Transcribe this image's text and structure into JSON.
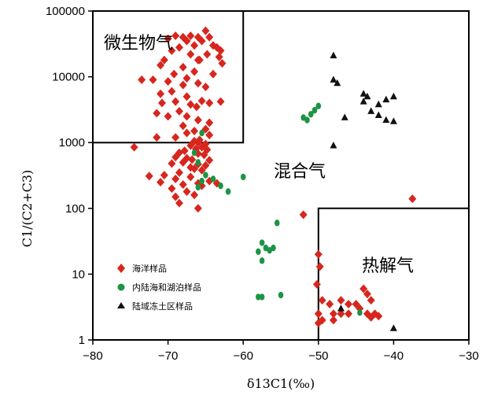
{
  "chart_data": {
    "type": "scatter",
    "title": "",
    "xlabel": "δ13C1(‰)",
    "ylabel": "C1/(C2+C3)",
    "xlim": [
      -80,
      -30
    ],
    "ylim": [
      1,
      100000
    ],
    "yscale": "log",
    "x_ticks": [
      -80,
      -70,
      -60,
      -50,
      -40,
      -30
    ],
    "x_tick_labels": [
      "−80",
      "−70",
      "−60",
      "−50",
      "−40",
      "−30"
    ],
    "y_ticks": [
      1,
      10,
      100,
      1000,
      10000,
      100000
    ],
    "y_tick_labels": [
      "1",
      "10",
      "100",
      "1000",
      "10000",
      "100000"
    ],
    "grid": false,
    "legend": {
      "position": "bottom-left",
      "entries": [
        "海洋样品",
        "内陆海和湖泊样品",
        "陆域冻土区样品"
      ]
    },
    "regions": [
      {
        "name": "微生物气",
        "x_range": [
          -80,
          -60
        ],
        "y_range": [
          1000,
          100000
        ]
      },
      {
        "name": "混合气",
        "x_range": [
          -80,
          -30
        ],
        "y_range": [
          1,
          100000
        ]
      },
      {
        "name": "热解气",
        "x_range": [
          -50,
          -30
        ],
        "y_range": [
          1,
          100
        ]
      }
    ],
    "series": [
      {
        "name": "海洋样品",
        "marker": "diamond",
        "color": "#d7261e",
        "points": [
          [
            -65,
            50000
          ],
          [
            -64.5,
            40000
          ],
          [
            -65.5,
            35000
          ],
          [
            -64,
            30000
          ],
          [
            -63.5,
            28000
          ],
          [
            -63,
            25000
          ],
          [
            -64.8,
            22000
          ],
          [
            -63.2,
            20000
          ],
          [
            -65.8,
            18000
          ],
          [
            -62.8,
            16000
          ],
          [
            -69,
            42000
          ],
          [
            -68,
            40000
          ],
          [
            -67,
            42000
          ],
          [
            -66,
            40000
          ],
          [
            -70,
            38000
          ],
          [
            -67.5,
            35000
          ],
          [
            -66.5,
            30000
          ],
          [
            -68.5,
            28000
          ],
          [
            -69.5,
            25000
          ],
          [
            -67,
            22000
          ],
          [
            -66,
            18000
          ],
          [
            -70.5,
            18000
          ],
          [
            -71,
            15000
          ],
          [
            -68,
            14000
          ],
          [
            -66.5,
            12000
          ],
          [
            -69.2,
            11000
          ],
          [
            -64,
            11000
          ],
          [
            -67.5,
            9500
          ],
          [
            -72,
            9000
          ],
          [
            -70,
            8500
          ],
          [
            -66,
            8000
          ],
          [
            -68,
            7500
          ],
          [
            -65,
            7000
          ],
          [
            -69.5,
            6000
          ],
          [
            -71,
            5500
          ],
          [
            -67.5,
            5000
          ],
          [
            -73.5,
            9000
          ],
          [
            -69,
            4200
          ],
          [
            -65.5,
            4300
          ],
          [
            -64.5,
            4000
          ],
          [
            -63,
            4200
          ],
          [
            -70.8,
            4000
          ],
          [
            -67,
            3800
          ],
          [
            -66.2,
            3500
          ],
          [
            -68.5,
            3000
          ],
          [
            -71.5,
            2800
          ],
          [
            -67.5,
            2500
          ],
          [
            -70,
            2500
          ],
          [
            -66,
            2200
          ],
          [
            -64.5,
            2000
          ],
          [
            -68,
            1800
          ],
          [
            -65,
            1600
          ],
          [
            -66.5,
            1500
          ],
          [
            -67.5,
            1400
          ],
          [
            -69,
            1200
          ],
          [
            -71.5,
            1200
          ],
          [
            -64.5,
            1300
          ],
          [
            -65.8,
            1100
          ],
          [
            -66.5,
            1050
          ],
          [
            -66,
            1000
          ],
          [
            -65,
            950
          ],
          [
            -67,
            900
          ],
          [
            -65.5,
            850
          ],
          [
            -66.3,
            800
          ],
          [
            -64.8,
            780
          ],
          [
            -67.8,
            750
          ],
          [
            -68.5,
            700
          ],
          [
            -66,
            680
          ],
          [
            -65.2,
            650
          ],
          [
            -69,
            600
          ],
          [
            -67.5,
            580
          ],
          [
            -66.8,
            550
          ],
          [
            -64.5,
            540
          ],
          [
            -68,
            500
          ],
          [
            -69.5,
            480
          ],
          [
            -66,
            470
          ],
          [
            -65,
            450
          ],
          [
            -67,
            420
          ],
          [
            -66.5,
            400
          ],
          [
            -65.5,
            380
          ],
          [
            -68.5,
            350
          ],
          [
            -70.5,
            320
          ],
          [
            -72.5,
            310
          ],
          [
            -67,
            300
          ],
          [
            -69,
            280
          ],
          [
            -64.5,
            260
          ],
          [
            -71,
            250
          ],
          [
            -66,
            240
          ],
          [
            -68,
            230
          ],
          [
            -65.5,
            220
          ],
          [
            -63.5,
            240
          ],
          [
            -69.5,
            200
          ],
          [
            -67.5,
            180
          ],
          [
            -66.5,
            160
          ],
          [
            -69,
            150
          ],
          [
            -68.5,
            120
          ],
          [
            -66,
            100
          ],
          [
            -74.5,
            850
          ],
          [
            -52,
            80
          ],
          [
            -50,
            20
          ],
          [
            -49.8,
            13
          ],
          [
            -50.2,
            7
          ],
          [
            -49.5,
            4
          ],
          [
            -48.5,
            3.5
          ],
          [
            -47,
            4
          ],
          [
            -46,
            3.5
          ],
          [
            -48,
            2.5
          ],
          [
            -50,
            2.5
          ],
          [
            -49.5,
            2
          ],
          [
            -50,
            1.8
          ],
          [
            -48,
            2
          ],
          [
            -47,
            2.5
          ],
          [
            -46,
            2.5
          ],
          [
            -45,
            3.5
          ],
          [
            -44,
            6
          ],
          [
            -43.5,
            5
          ],
          [
            -43,
            4
          ],
          [
            -44.5,
            3
          ],
          [
            -43.5,
            2.5
          ],
          [
            -43,
            2.2
          ],
          [
            -42.5,
            2.5
          ],
          [
            -42,
            2.3
          ],
          [
            -37.5,
            140
          ]
        ]
      },
      {
        "name": "内陆海和湖泊样品",
        "marker": "circle",
        "color": "#1d9444",
        "points": [
          [
            -65.5,
            1400
          ],
          [
            -66.5,
            700
          ],
          [
            -66,
            500
          ],
          [
            -65,
            320
          ],
          [
            -65.5,
            260
          ],
          [
            -66,
            210
          ],
          [
            -64,
            280
          ],
          [
            -63,
            220
          ],
          [
            -62,
            180
          ],
          [
            -60,
            300
          ],
          [
            -50,
            3600
          ],
          [
            -50.5,
            3100
          ],
          [
            -51,
            2700
          ],
          [
            -52,
            2400
          ],
          [
            -51.5,
            2200
          ],
          [
            -57.5,
            30
          ],
          [
            -57,
            25
          ],
          [
            -58,
            22
          ],
          [
            -56.5,
            23
          ],
          [
            -56,
            25
          ],
          [
            -55.5,
            60
          ],
          [
            -57.5,
            16
          ],
          [
            -58,
            4.5
          ],
          [
            -57.5,
            4.5
          ],
          [
            -55,
            4.8
          ],
          [
            -44.5,
            2.6
          ]
        ]
      },
      {
        "name": "陆域冻土区样品",
        "marker": "triangle",
        "color": "#111111",
        "points": [
          [
            -48,
            21000
          ],
          [
            -48,
            9000
          ],
          [
            -47.5,
            8000
          ],
          [
            -44,
            5500
          ],
          [
            -43.5,
            5000
          ],
          [
            -44,
            4200
          ],
          [
            -41,
            4500
          ],
          [
            -40,
            5000
          ],
          [
            -42,
            3800
          ],
          [
            -43,
            3000
          ],
          [
            -46.5,
            2400
          ],
          [
            -42,
            2600
          ],
          [
            -41,
            2200
          ],
          [
            -40,
            2100
          ],
          [
            -48,
            900
          ],
          [
            -47,
            3
          ],
          [
            -40,
            1.5
          ]
        ]
      }
    ]
  }
}
